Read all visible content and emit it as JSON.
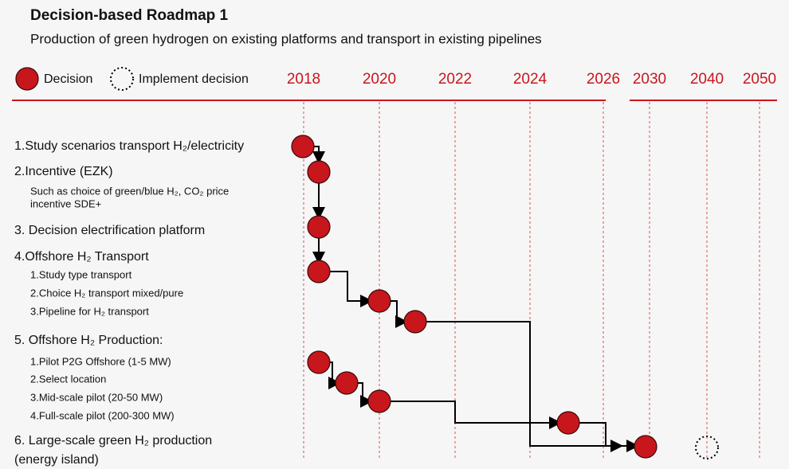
{
  "title": "Decision-based Roadmap 1",
  "subtitle": "Production of green hydrogen on existing platforms and transport in existing pipelines",
  "legend": {
    "decision": "Decision",
    "implement": "Implement decision"
  },
  "years": [
    "2018",
    "2020",
    "2022",
    "2024",
    "2026",
    "2030",
    "2040",
    "2050"
  ],
  "items": [
    {
      "lines": [
        "1.Study scenarios transport H₂/electricity"
      ],
      "subitems": []
    },
    {
      "lines": [
        "2.Incentive (EZK)"
      ],
      "subitems": [
        "Such as choice of green/blue H₂, CO₂ price",
        "incentive SDE+"
      ]
    },
    {
      "lines": [
        "3. Decision electrification platform"
      ],
      "subitems": []
    },
    {
      "lines": [
        "4.Offshore H₂ Transport"
      ],
      "subitems": [
        "1.Study type transport",
        "2.Choice H₂ transport mixed/pure",
        "3.Pipeline for H₂ transport"
      ]
    },
    {
      "lines": [
        "5. Offshore H₂ Production:"
      ],
      "subitems": [
        "1.Pilot P2G Offshore (1-5 MW)",
        "2.Select location",
        "3.Mid-scale pilot (20-50 MW)",
        "4.Full-scale pilot (200-300 MW)"
      ]
    },
    {
      "lines": [
        "6. Large-scale green H₂ production",
        "(energy island)"
      ],
      "subitems": []
    }
  ]
}
